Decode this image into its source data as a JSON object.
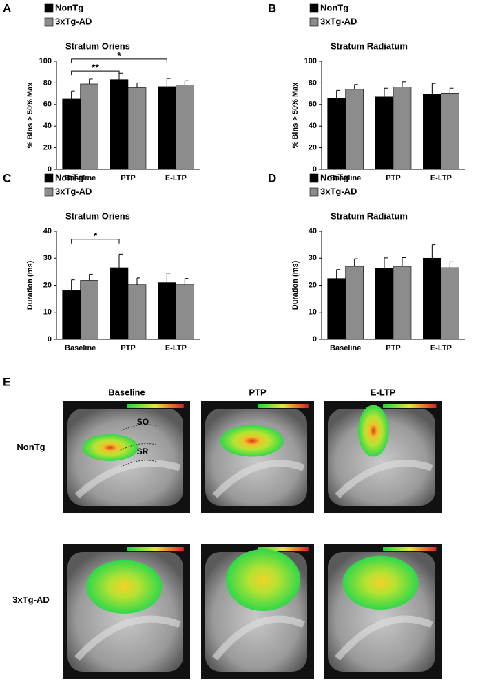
{
  "chart_data": [
    {
      "type": "bar",
      "panel_label": "A",
      "title": "Stratum Oriens",
      "y_label": "% Bins > 50% Max",
      "categories": [
        "Baseline",
        "PTP",
        "E-LTP"
      ],
      "series": [
        {
          "name": "NonTg",
          "color": "#000000",
          "values": [
            65,
            83,
            76.5
          ],
          "errors": [
            7.5,
            6,
            7.5
          ]
        },
        {
          "name": "3xTg-AD",
          "color": "#8c8c8c",
          "values": [
            79,
            75.5,
            78
          ],
          "errors": [
            4.5,
            4.5,
            4
          ]
        }
      ],
      "ylim": [
        0,
        100
      ],
      "yticks": [
        0,
        20,
        40,
        60,
        80,
        100
      ],
      "annotations": [
        {
          "text": "**",
          "between": [
            0,
            1
          ],
          "y": 91
        },
        {
          "text": "*",
          "between": [
            0,
            2
          ],
          "y": 102
        }
      ]
    },
    {
      "type": "bar",
      "panel_label": "B",
      "title": "Stratum Radiatum",
      "y_label": "% Bins > 50% Max",
      "categories": [
        "Baseline",
        "PTP",
        "E-LTP"
      ],
      "series": [
        {
          "name": "NonTg",
          "color": "#000000",
          "values": [
            66,
            67,
            69.5
          ],
          "errors": [
            7,
            8,
            10
          ]
        },
        {
          "name": "3xTg-AD",
          "color": "#8c8c8c",
          "values": [
            74,
            76,
            70.5
          ],
          "errors": [
            4.5,
            5,
            4.5
          ]
        }
      ],
      "ylim": [
        0,
        100
      ],
      "yticks": [
        0,
        20,
        40,
        60,
        80,
        100
      ],
      "annotations": []
    },
    {
      "type": "bar",
      "panel_label": "C",
      "title": "Stratum Oriens",
      "y_label": "Duration (ms)",
      "categories": [
        "Baseline",
        "PTP",
        "E-LTP"
      ],
      "series": [
        {
          "name": "NonTg",
          "color": "#000000",
          "values": [
            18,
            26.5,
            21
          ],
          "errors": [
            4,
            5,
            3.5
          ]
        },
        {
          "name": "3xTg-AD",
          "color": "#8c8c8c",
          "values": [
            21.8,
            20.2,
            20.2
          ],
          "errors": [
            2.3,
            2.5,
            2.3
          ]
        }
      ],
      "ylim": [
        0,
        40
      ],
      "yticks": [
        0,
        10,
        20,
        30,
        40
      ],
      "annotations": [
        {
          "text": "*",
          "between": [
            0,
            1
          ],
          "y": 37
        }
      ]
    },
    {
      "type": "bar",
      "panel_label": "D",
      "title": "Stratum Radiatum",
      "y_label": "Duration (ms)",
      "categories": [
        "Baseline",
        "PTP",
        "E-LTP"
      ],
      "series": [
        {
          "name": "NonTg",
          "color": "#000000",
          "values": [
            22.5,
            26.3,
            30
          ],
          "errors": [
            3.3,
            3.8,
            5
          ]
        },
        {
          "name": "3xTg-AD",
          "color": "#8c8c8c",
          "values": [
            27,
            27,
            26.5
          ],
          "errors": [
            2.8,
            3.2,
            2.2
          ]
        }
      ],
      "ylim": [
        0,
        40
      ],
      "yticks": [
        0,
        10,
        20,
        30,
        40
      ],
      "annotations": []
    }
  ],
  "panel_e": {
    "panel_label": "E",
    "columns": [
      "Baseline",
      "PTP",
      "E-LTP"
    ],
    "rows": [
      "NonTg",
      "3xTg-AD"
    ],
    "layer_labels": [
      "SO",
      "SR"
    ]
  }
}
